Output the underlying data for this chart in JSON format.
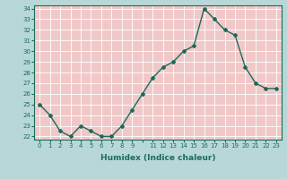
{
  "x": [
    0,
    1,
    2,
    3,
    4,
    5,
    6,
    7,
    8,
    9,
    10,
    11,
    12,
    13,
    14,
    15,
    16,
    17,
    18,
    19,
    20,
    21,
    22,
    23
  ],
  "y": [
    25.0,
    24.0,
    22.5,
    22.0,
    23.0,
    22.5,
    22.0,
    22.0,
    23.0,
    24.5,
    26.0,
    27.5,
    28.5,
    29.0,
    30.0,
    30.5,
    34.0,
    33.0,
    32.0,
    31.5,
    28.5,
    27.0,
    26.5,
    26.5
  ],
  "xtick_labels": [
    "0",
    "1",
    "2",
    "3",
    "4",
    "5",
    "6",
    "7",
    "8",
    "9",
    "",
    "11",
    "12",
    "13",
    "14",
    "15",
    "16",
    "17",
    "18",
    "19",
    "20",
    "21",
    "22",
    "23"
  ],
  "ytick_min": 22,
  "ytick_max": 34,
  "xlabel": "Humidex (Indice chaleur)",
  "line_color": "#1a6b5a",
  "bg_color": "#b8d8d8",
  "plot_bg_color": "#f0c8c8",
  "grid_color": "#ffffff"
}
